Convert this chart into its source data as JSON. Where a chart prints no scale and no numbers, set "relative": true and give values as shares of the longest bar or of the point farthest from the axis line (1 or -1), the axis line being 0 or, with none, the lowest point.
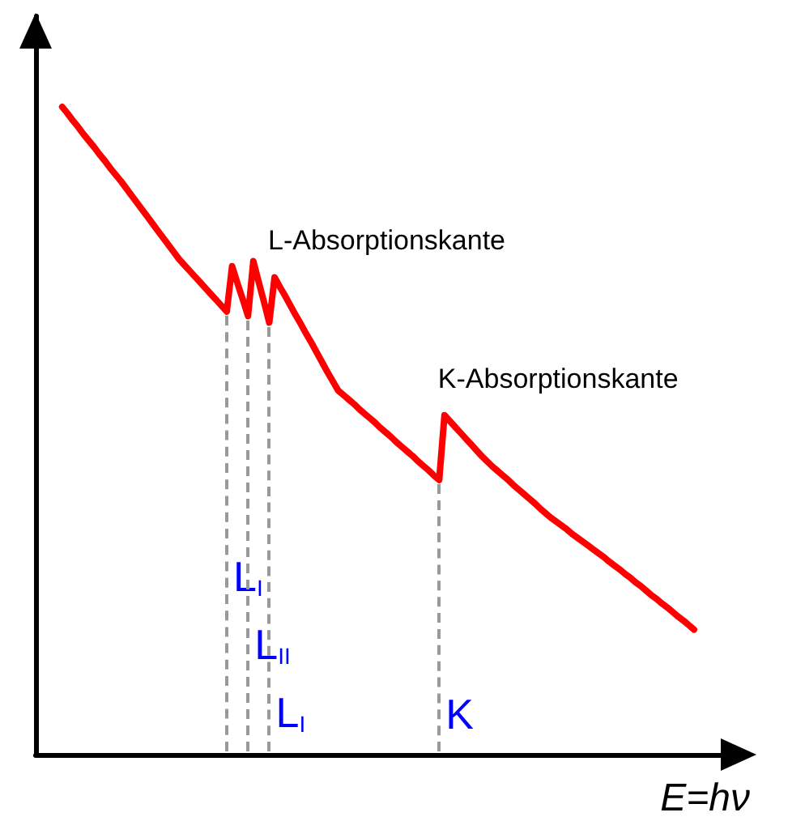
{
  "chart_data": {
    "type": "line",
    "relative": true,
    "xlabel": "E=hν",
    "marker": "none",
    "line_style": "solid",
    "categories": [
      null,
      null,
      null,
      null,
      null,
      null,
      null,
      null,
      null,
      null,
      null,
      null,
      null,
      null,
      null,
      null,
      null,
      null,
      null,
      null,
      null,
      null,
      null,
      null,
      null,
      null,
      null,
      null,
      null,
      null,
      null,
      null,
      null,
      null,
      null,
      null,
      null,
      null,
      null,
      null,
      null,
      null,
      null,
      null,
      null,
      null,
      null,
      null,
      null,
      null,
      null,
      null,
      null,
      null,
      null,
      null,
      null,
      null,
      null,
      null,
      null,
      null,
      null,
      null,
      null,
      null,
      null,
      null,
      null,
      null,
      null,
      null,
      null,
      null,
      null,
      null,
      null,
      null,
      null,
      null,
      null,
      null,
      null,
      null,
      null,
      null,
      null,
      null,
      null,
      null,
      null,
      null,
      null,
      null,
      null,
      null,
      null,
      null,
      null,
      null,
      null,
      null,
      null,
      null,
      null,
      null,
      null,
      null,
      null,
      null,
      null,
      null,
      null,
      null,
      null,
      null,
      null,
      null,
      null,
      null,
      null,
      null,
      null,
      null,
      null,
      null,
      null,
      null,
      null,
      null,
      null,
      null,
      null,
      null
    ],
    "series": [
      {
        "color": "#ff0000",
        "values": [
          null,
          null,
          null,
          null,
          null,
          1.0,
          0.99,
          0.979,
          0.969,
          0.958,
          0.948,
          0.938,
          0.927,
          0.917,
          0.906,
          0.896,
          0.886,
          0.875,
          0.864,
          0.853,
          0.842,
          0.831,
          0.82,
          0.809,
          0.798,
          0.787,
          0.776,
          0.765,
          0.756,
          0.747,
          0.738,
          0.729,
          0.72,
          0.711,
          0.702,
          0.693,
          0.684,
          0.754,
          0.728,
          0.703,
          0.677,
          0.762,
          0.73,
          0.699,
          0.667,
          0.737,
          0.722,
          0.708,
          0.693,
          0.678,
          0.664,
          0.649,
          0.635,
          0.62,
          0.605,
          0.59,
          0.576,
          0.562,
          0.555,
          0.548,
          0.541,
          0.533,
          0.526,
          0.519,
          0.512,
          0.504,
          0.497,
          0.49,
          0.482,
          0.475,
          0.468,
          0.461,
          0.453,
          0.446,
          0.439,
          0.431,
          0.424,
          0.524,
          0.515,
          0.506,
          0.497,
          0.488,
          0.479,
          0.47,
          0.461,
          0.453,
          0.445,
          0.438,
          0.431,
          0.424,
          0.416,
          0.409,
          0.402,
          0.395,
          0.388,
          0.38,
          0.373,
          0.366,
          0.36,
          0.354,
          0.348,
          0.341,
          0.335,
          0.329,
          0.323,
          0.317,
          0.311,
          0.305,
          0.298,
          0.292,
          0.286,
          0.279,
          0.273,
          0.266,
          0.26,
          0.253,
          0.246,
          0.24,
          0.233,
          0.227,
          0.22,
          0.213,
          0.207,
          0.2,
          0.193,
          null,
          null,
          null,
          null,
          null,
          null,
          null,
          null,
          null
        ]
      }
    ],
    "annotations": [
      "L-Absorptionskante",
      "K-Absorptionskante",
      "L$_{I}$",
      "L$_{II}$",
      "L$_{I}$",
      "K"
    ]
  }
}
